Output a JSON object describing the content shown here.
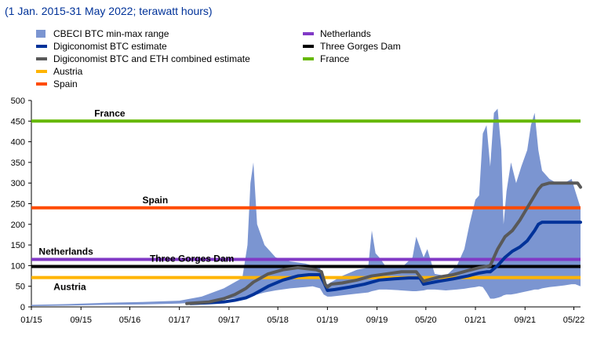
{
  "subtitle": "(1 Jan. 2015-31 May 2022; terawatt hours)",
  "colors": {
    "cbeci": "#7b95d1",
    "btc": "#003299",
    "combined": "#595959",
    "austria": "#ffb400",
    "spain": "#ff4b00",
    "netherlands": "#8139c6",
    "three_gorges": "#000000",
    "france": "#65b800"
  },
  "legend": {
    "cbeci": "CBECI BTC min-max range",
    "btc": "Digiconomist BTC estimate",
    "combined": "Digiconomist BTC and ETH combined estimate",
    "austria": "Austria",
    "spain": "Spain",
    "netherlands": "Netherlands",
    "three_gorges": "Three Gorges Dam",
    "france": "France"
  },
  "chart_data": {
    "type": "area",
    "x_unit": "years since Jan 2015",
    "xlim": [
      0,
      7.42
    ],
    "ylim": [
      0,
      500
    ],
    "yticks": [
      0,
      50,
      100,
      150,
      200,
      250,
      300,
      350,
      400,
      450,
      500
    ],
    "xticks": [
      {
        "x": 0.0,
        "label": "01/15"
      },
      {
        "x": 0.67,
        "label": "09/15"
      },
      {
        "x": 1.33,
        "label": "05/16"
      },
      {
        "x": 2.0,
        "label": "01/17"
      },
      {
        "x": 2.67,
        "label": "09/17"
      },
      {
        "x": 3.33,
        "label": "05/18"
      },
      {
        "x": 4.0,
        "label": "01/19"
      },
      {
        "x": 4.67,
        "label": "09/19"
      },
      {
        "x": 5.33,
        "label": "05/20"
      },
      {
        "x": 6.0,
        "label": "01/21"
      },
      {
        "x": 6.67,
        "label": "09/21"
      },
      {
        "x": 7.33,
        "label": "05/22"
      }
    ],
    "reference_lines": [
      {
        "name": "France",
        "value": 450,
        "label_x": 0.85
      },
      {
        "name": "Spain",
        "value": 240,
        "label_x": 1.5
      },
      {
        "name": "Netherlands",
        "value": 115,
        "label_x": 0.1
      },
      {
        "name": "Three Gorges Dam",
        "value": 98,
        "label_x": 1.6
      },
      {
        "name": "Austria",
        "value": 71,
        "label_x": 0.3
      }
    ],
    "cbeci_range": {
      "x": [
        0.0,
        0.5,
        1.0,
        1.5,
        2.0,
        2.3,
        2.6,
        2.85,
        2.92,
        2.96,
        3.0,
        3.05,
        3.15,
        3.3,
        3.5,
        3.7,
        3.8,
        3.9,
        3.95,
        4.0,
        4.05,
        4.2,
        4.4,
        4.55,
        4.6,
        4.65,
        4.7,
        4.8,
        5.0,
        5.15,
        5.2,
        5.3,
        5.35,
        5.45,
        5.6,
        5.75,
        5.85,
        5.92,
        6.0,
        6.05,
        6.1,
        6.15,
        6.2,
        6.25,
        6.3,
        6.35,
        6.38,
        6.42,
        6.48,
        6.55,
        6.62,
        6.7,
        6.75,
        6.8,
        6.85,
        6.9,
        7.0,
        7.1,
        7.2,
        7.3,
        7.35,
        7.42
      ],
      "min": [
        2,
        3,
        5,
        6,
        8,
        12,
        18,
        22,
        25,
        28,
        28,
        30,
        35,
        40,
        45,
        48,
        50,
        45,
        30,
        25,
        25,
        28,
        32,
        35,
        38,
        40,
        42,
        42,
        40,
        38,
        38,
        40,
        42,
        42,
        40,
        42,
        44,
        46,
        48,
        50,
        48,
        35,
        20,
        20,
        22,
        25,
        28,
        30,
        30,
        32,
        35,
        38,
        40,
        42,
        42,
        45,
        48,
        50,
        52,
        55,
        55,
        50
      ],
      "max": [
        5,
        7,
        10,
        12,
        15,
        25,
        45,
        70,
        150,
        300,
        350,
        200,
        150,
        120,
        110,
        105,
        100,
        95,
        60,
        55,
        60,
        75,
        90,
        95,
        185,
        130,
        120,
        95,
        95,
        120,
        170,
        120,
        140,
        80,
        75,
        100,
        140,
        200,
        260,
        270,
        420,
        440,
        340,
        470,
        480,
        380,
        200,
        280,
        350,
        300,
        340,
        380,
        440,
        470,
        380,
        330,
        310,
        300,
        300,
        310,
        280,
        240
      ]
    },
    "series": [
      {
        "name": "Digiconomist BTC estimate",
        "key": "btc",
        "x": [
          2.15,
          2.4,
          2.6,
          2.75,
          2.9,
          3.0,
          3.2,
          3.4,
          3.6,
          3.75,
          3.85,
          3.9,
          3.95,
          4.0,
          4.1,
          4.3,
          4.5,
          4.7,
          4.9,
          5.1,
          5.25,
          5.3,
          5.5,
          5.7,
          5.9,
          6.05,
          6.15,
          6.2,
          6.3,
          6.4,
          6.5,
          6.6,
          6.7,
          6.8,
          6.85,
          6.9,
          7.0,
          7.2,
          7.42
        ],
        "y": [
          8,
          10,
          12,
          16,
          22,
          30,
          50,
          65,
          75,
          78,
          78,
          78,
          60,
          40,
          42,
          48,
          55,
          65,
          68,
          70,
          70,
          55,
          62,
          68,
          75,
          82,
          85,
          85,
          100,
          120,
          135,
          145,
          160,
          185,
          200,
          205,
          205,
          205,
          205
        ]
      },
      {
        "name": "Digiconomist BTC and ETH combined estimate",
        "key": "combined",
        "x": [
          2.1,
          2.4,
          2.6,
          2.75,
          2.9,
          3.0,
          3.2,
          3.4,
          3.6,
          3.75,
          3.85,
          3.92,
          3.97,
          4.0,
          4.05,
          4.2,
          4.4,
          4.6,
          4.8,
          5.0,
          5.2,
          5.3,
          5.35,
          5.5,
          5.7,
          5.9,
          6.05,
          6.15,
          6.2,
          6.3,
          6.4,
          6.5,
          6.6,
          6.7,
          6.8,
          6.85,
          6.9,
          7.0,
          7.2,
          7.38,
          7.42
        ],
        "y": [
          8,
          12,
          20,
          30,
          45,
          60,
          80,
          90,
          95,
          92,
          90,
          85,
          55,
          48,
          55,
          58,
          65,
          75,
          80,
          85,
          85,
          62,
          65,
          72,
          78,
          88,
          95,
          98,
          100,
          140,
          170,
          185,
          210,
          240,
          270,
          285,
          295,
          300,
          300,
          300,
          290
        ]
      }
    ]
  }
}
